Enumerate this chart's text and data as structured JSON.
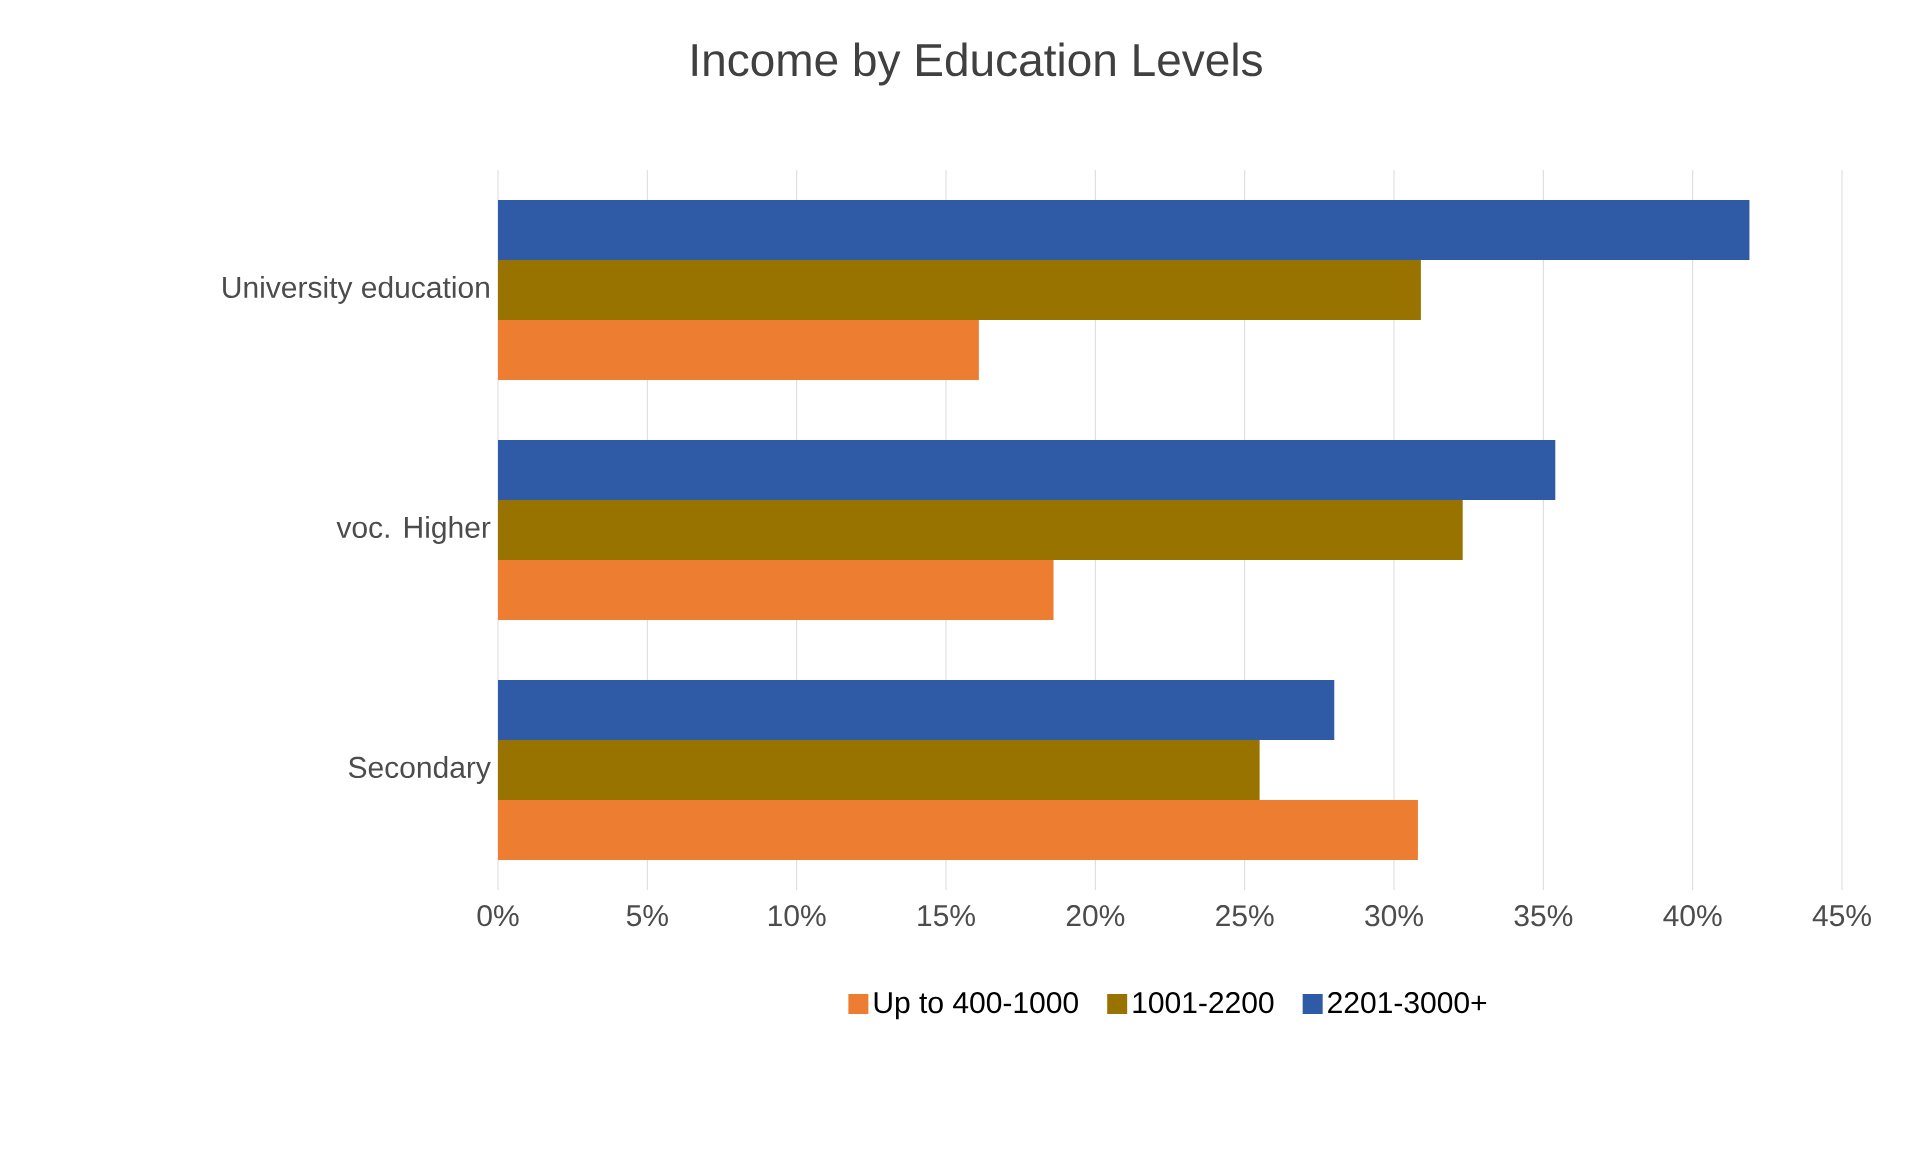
{
  "chart_data": {
    "type": "bar",
    "orientation": "horizontal",
    "title": "Income by Education Levels",
    "categories": [
      "University education",
      "voc. Higher",
      "Secondary"
    ],
    "series": [
      {
        "name": "Up to 400-1000",
        "color": "#ed7d31",
        "values": [
          16.1,
          18.6,
          30.8
        ]
      },
      {
        "name": "1001-2200",
        "color": "#997300",
        "values": [
          30.9,
          32.3,
          25.5
        ]
      },
      {
        "name": "2201-3000+",
        "color": "#2e5aa6",
        "values": [
          41.9,
          35.4,
          28.0
        ]
      }
    ],
    "xlim": [
      0,
      45
    ],
    "xticks": [
      {
        "value": 0,
        "label": "0%"
      },
      {
        "value": 5,
        "label": "5%"
      },
      {
        "value": 10,
        "label": "10%"
      },
      {
        "value": 15,
        "label": "15%"
      },
      {
        "value": 20,
        "label": "20%"
      },
      {
        "value": 25,
        "label": "25%"
      },
      {
        "value": 30,
        "label": "30%"
      },
      {
        "value": 35,
        "label": "35%"
      },
      {
        "value": 40,
        "label": "40%"
      },
      {
        "value": 45,
        "label": "45%"
      }
    ],
    "grid": "x",
    "legend": "bottom"
  }
}
